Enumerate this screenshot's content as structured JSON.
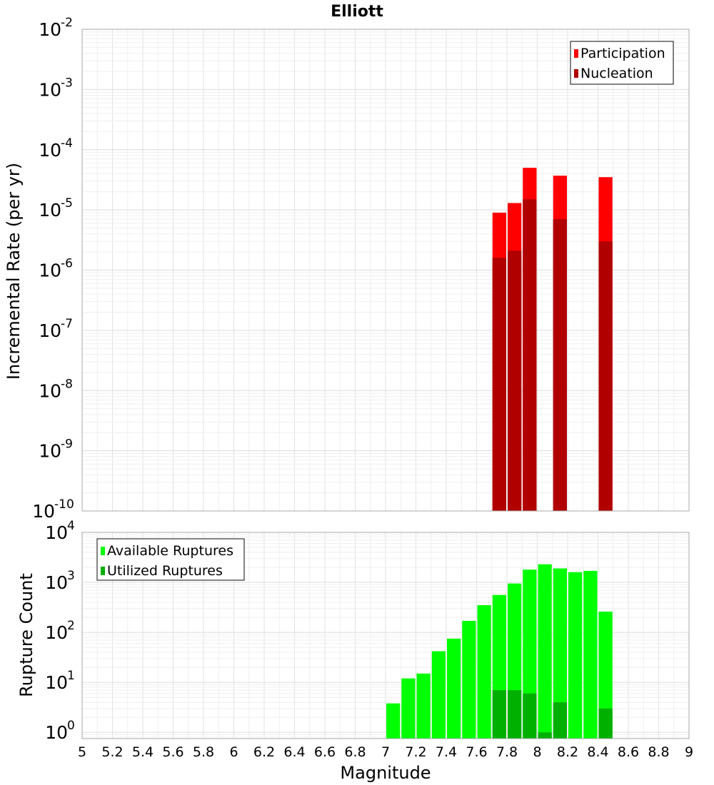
{
  "chart_data": [
    {
      "type": "bar",
      "title": "Elliott",
      "xlabel": "",
      "ylabel": "Incremental Rate (per yr)",
      "yscale": "log",
      "ylim": [
        1e-10,
        0.01
      ],
      "ytick_exponents": [
        "-10",
        "-9",
        "-8",
        "-7",
        "-6",
        "-5",
        "-4",
        "-3",
        "-2"
      ],
      "xlim": [
        5,
        9
      ],
      "bin_width": 0.1,
      "legend_position": "top-right",
      "grid": true,
      "series": [
        {
          "name": "Participation",
          "color": "#ff0000",
          "points": [
            {
              "x": 7.75,
              "y": 9e-06
            },
            {
              "x": 7.85,
              "y": 1.3e-05
            },
            {
              "x": 7.95,
              "y": 5e-05
            },
            {
              "x": 8.15,
              "y": 3.7e-05
            },
            {
              "x": 8.45,
              "y": 3.5e-05
            }
          ]
        },
        {
          "name": "Nucleation",
          "color": "#b00000",
          "points": [
            {
              "x": 7.75,
              "y": 1.6e-06
            },
            {
              "x": 7.85,
              "y": 2.1e-06
            },
            {
              "x": 7.95,
              "y": 1.5e-05
            },
            {
              "x": 8.15,
              "y": 7e-06
            },
            {
              "x": 8.45,
              "y": 3e-06
            }
          ]
        }
      ]
    },
    {
      "type": "bar",
      "title": "",
      "xlabel": "Magnitude",
      "ylabel": "Rupture Count",
      "yscale": "log",
      "ylim": [
        0.75,
        10000
      ],
      "ytick_exponents": [
        "0",
        "1",
        "2",
        "3",
        "4"
      ],
      "xlim": [
        5,
        9
      ],
      "xticks": [
        "5",
        "5.2",
        "5.4",
        "5.6",
        "5.8",
        "6",
        "6.2",
        "6.4",
        "6.6",
        "6.8",
        "7",
        "7.2",
        "7.4",
        "7.6",
        "7.8",
        "8",
        "8.2",
        "8.4",
        "8.6",
        "8.8",
        "9"
      ],
      "bin_width": 0.1,
      "legend_position": "top-left",
      "grid": true,
      "series": [
        {
          "name": "Available Ruptures",
          "color": "#00ff00",
          "points": [
            {
              "x": 7.05,
              "y": 3.8
            },
            {
              "x": 7.15,
              "y": 12
            },
            {
              "x": 7.25,
              "y": 15
            },
            {
              "x": 7.35,
              "y": 42
            },
            {
              "x": 7.45,
              "y": 75
            },
            {
              "x": 7.55,
              "y": 170
            },
            {
              "x": 7.65,
              "y": 350
            },
            {
              "x": 7.75,
              "y": 560
            },
            {
              "x": 7.85,
              "y": 950
            },
            {
              "x": 7.95,
              "y": 1800
            },
            {
              "x": 8.05,
              "y": 2300
            },
            {
              "x": 8.15,
              "y": 1900
            },
            {
              "x": 8.25,
              "y": 1600
            },
            {
              "x": 8.35,
              "y": 1700
            },
            {
              "x": 8.45,
              "y": 260
            }
          ]
        },
        {
          "name": "Utilized Ruptures",
          "color": "#00b000",
          "points": [
            {
              "x": 7.75,
              "y": 7
            },
            {
              "x": 7.85,
              "y": 7
            },
            {
              "x": 7.95,
              "y": 6
            },
            {
              "x": 8.05,
              "y": 1
            },
            {
              "x": 8.15,
              "y": 4
            },
            {
              "x": 8.45,
              "y": 3
            }
          ]
        }
      ]
    }
  ]
}
